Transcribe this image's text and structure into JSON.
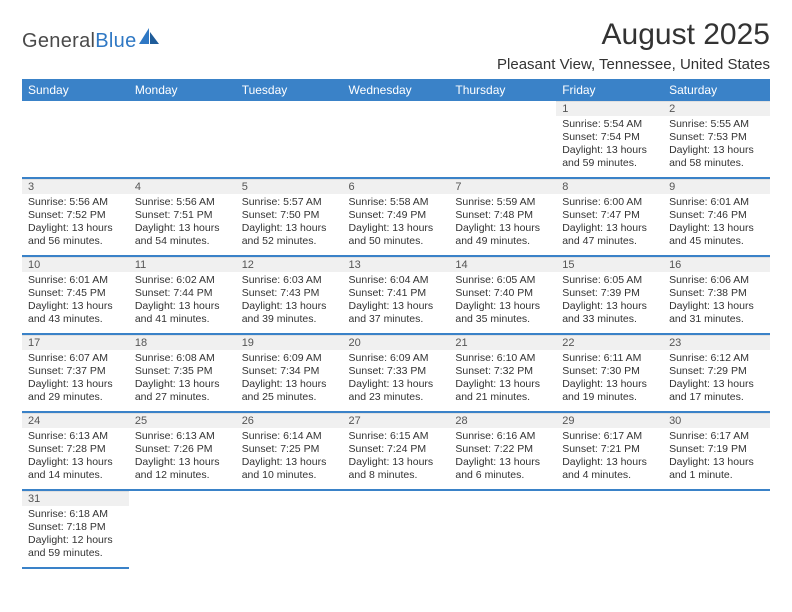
{
  "logo": {
    "textLeft": "General",
    "textRight": "Blue"
  },
  "title": "August 2025",
  "location": "Pleasant View, Tennessee, United States",
  "colors": {
    "headerBar": "#3a82c8",
    "dayNumBg": "#f0f0f0",
    "cellBorder": "#3a82c8",
    "text": "#333333",
    "logoBlue": "#2f78c4"
  },
  "weekdays": [
    "Sunday",
    "Monday",
    "Tuesday",
    "Wednesday",
    "Thursday",
    "Friday",
    "Saturday"
  ],
  "weeks": [
    [
      null,
      null,
      null,
      null,
      null,
      {
        "n": "1",
        "sunrise": "Sunrise: 5:54 AM",
        "sunset": "Sunset: 7:54 PM",
        "daylight": "Daylight: 13 hours and 59 minutes."
      },
      {
        "n": "2",
        "sunrise": "Sunrise: 5:55 AM",
        "sunset": "Sunset: 7:53 PM",
        "daylight": "Daylight: 13 hours and 58 minutes."
      }
    ],
    [
      {
        "n": "3",
        "sunrise": "Sunrise: 5:56 AM",
        "sunset": "Sunset: 7:52 PM",
        "daylight": "Daylight: 13 hours and 56 minutes."
      },
      {
        "n": "4",
        "sunrise": "Sunrise: 5:56 AM",
        "sunset": "Sunset: 7:51 PM",
        "daylight": "Daylight: 13 hours and 54 minutes."
      },
      {
        "n": "5",
        "sunrise": "Sunrise: 5:57 AM",
        "sunset": "Sunset: 7:50 PM",
        "daylight": "Daylight: 13 hours and 52 minutes."
      },
      {
        "n": "6",
        "sunrise": "Sunrise: 5:58 AM",
        "sunset": "Sunset: 7:49 PM",
        "daylight": "Daylight: 13 hours and 50 minutes."
      },
      {
        "n": "7",
        "sunrise": "Sunrise: 5:59 AM",
        "sunset": "Sunset: 7:48 PM",
        "daylight": "Daylight: 13 hours and 49 minutes."
      },
      {
        "n": "8",
        "sunrise": "Sunrise: 6:00 AM",
        "sunset": "Sunset: 7:47 PM",
        "daylight": "Daylight: 13 hours and 47 minutes."
      },
      {
        "n": "9",
        "sunrise": "Sunrise: 6:01 AM",
        "sunset": "Sunset: 7:46 PM",
        "daylight": "Daylight: 13 hours and 45 minutes."
      }
    ],
    [
      {
        "n": "10",
        "sunrise": "Sunrise: 6:01 AM",
        "sunset": "Sunset: 7:45 PM",
        "daylight": "Daylight: 13 hours and 43 minutes."
      },
      {
        "n": "11",
        "sunrise": "Sunrise: 6:02 AM",
        "sunset": "Sunset: 7:44 PM",
        "daylight": "Daylight: 13 hours and 41 minutes."
      },
      {
        "n": "12",
        "sunrise": "Sunrise: 6:03 AM",
        "sunset": "Sunset: 7:43 PM",
        "daylight": "Daylight: 13 hours and 39 minutes."
      },
      {
        "n": "13",
        "sunrise": "Sunrise: 6:04 AM",
        "sunset": "Sunset: 7:41 PM",
        "daylight": "Daylight: 13 hours and 37 minutes."
      },
      {
        "n": "14",
        "sunrise": "Sunrise: 6:05 AM",
        "sunset": "Sunset: 7:40 PM",
        "daylight": "Daylight: 13 hours and 35 minutes."
      },
      {
        "n": "15",
        "sunrise": "Sunrise: 6:05 AM",
        "sunset": "Sunset: 7:39 PM",
        "daylight": "Daylight: 13 hours and 33 minutes."
      },
      {
        "n": "16",
        "sunrise": "Sunrise: 6:06 AM",
        "sunset": "Sunset: 7:38 PM",
        "daylight": "Daylight: 13 hours and 31 minutes."
      }
    ],
    [
      {
        "n": "17",
        "sunrise": "Sunrise: 6:07 AM",
        "sunset": "Sunset: 7:37 PM",
        "daylight": "Daylight: 13 hours and 29 minutes."
      },
      {
        "n": "18",
        "sunrise": "Sunrise: 6:08 AM",
        "sunset": "Sunset: 7:35 PM",
        "daylight": "Daylight: 13 hours and 27 minutes."
      },
      {
        "n": "19",
        "sunrise": "Sunrise: 6:09 AM",
        "sunset": "Sunset: 7:34 PM",
        "daylight": "Daylight: 13 hours and 25 minutes."
      },
      {
        "n": "20",
        "sunrise": "Sunrise: 6:09 AM",
        "sunset": "Sunset: 7:33 PM",
        "daylight": "Daylight: 13 hours and 23 minutes."
      },
      {
        "n": "21",
        "sunrise": "Sunrise: 6:10 AM",
        "sunset": "Sunset: 7:32 PM",
        "daylight": "Daylight: 13 hours and 21 minutes."
      },
      {
        "n": "22",
        "sunrise": "Sunrise: 6:11 AM",
        "sunset": "Sunset: 7:30 PM",
        "daylight": "Daylight: 13 hours and 19 minutes."
      },
      {
        "n": "23",
        "sunrise": "Sunrise: 6:12 AM",
        "sunset": "Sunset: 7:29 PM",
        "daylight": "Daylight: 13 hours and 17 minutes."
      }
    ],
    [
      {
        "n": "24",
        "sunrise": "Sunrise: 6:13 AM",
        "sunset": "Sunset: 7:28 PM",
        "daylight": "Daylight: 13 hours and 14 minutes."
      },
      {
        "n": "25",
        "sunrise": "Sunrise: 6:13 AM",
        "sunset": "Sunset: 7:26 PM",
        "daylight": "Daylight: 13 hours and 12 minutes."
      },
      {
        "n": "26",
        "sunrise": "Sunrise: 6:14 AM",
        "sunset": "Sunset: 7:25 PM",
        "daylight": "Daylight: 13 hours and 10 minutes."
      },
      {
        "n": "27",
        "sunrise": "Sunrise: 6:15 AM",
        "sunset": "Sunset: 7:24 PM",
        "daylight": "Daylight: 13 hours and 8 minutes."
      },
      {
        "n": "28",
        "sunrise": "Sunrise: 6:16 AM",
        "sunset": "Sunset: 7:22 PM",
        "daylight": "Daylight: 13 hours and 6 minutes."
      },
      {
        "n": "29",
        "sunrise": "Sunrise: 6:17 AM",
        "sunset": "Sunset: 7:21 PM",
        "daylight": "Daylight: 13 hours and 4 minutes."
      },
      {
        "n": "30",
        "sunrise": "Sunrise: 6:17 AM",
        "sunset": "Sunset: 7:19 PM",
        "daylight": "Daylight: 13 hours and 1 minute."
      }
    ],
    [
      {
        "n": "31",
        "sunrise": "Sunrise: 6:18 AM",
        "sunset": "Sunset: 7:18 PM",
        "daylight": "Daylight: 12 hours and 59 minutes."
      },
      null,
      null,
      null,
      null,
      null,
      null
    ]
  ]
}
